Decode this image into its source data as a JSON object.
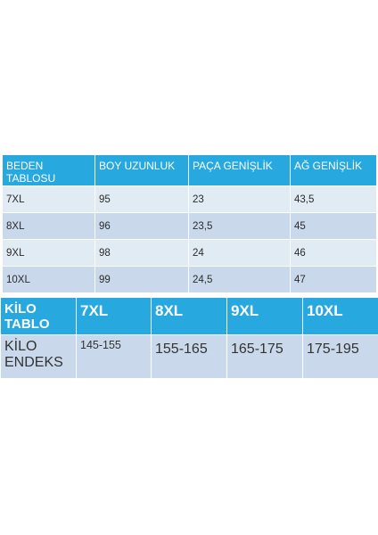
{
  "size_table": {
    "headers": [
      "BEDEN\nTABLOSU",
      "BOY UZUNLUK",
      "PAÇA GENİŞLİK",
      "AĞ GENİŞLİK"
    ],
    "rows": [
      [
        "7XL",
        "95",
        "23",
        "43,5"
      ],
      [
        "8XL",
        "96",
        "23,5",
        "45"
      ],
      [
        "9XL",
        "98",
        "24",
        "46"
      ],
      [
        "10XL",
        "99",
        "24,5",
        "47"
      ]
    ]
  },
  "kilo_table": {
    "title": "KİLO\nTABLO",
    "sizes": [
      "7XL",
      "8XL",
      "9XL",
      "10XL"
    ],
    "row_label": "KİLO\nENDEKS",
    "values": [
      "145-155",
      "155-165",
      "165-175",
      "175-195"
    ]
  },
  "colors": {
    "header_blue": "#27a8df",
    "row_light": "#e1ebf4",
    "row_dark": "#c9d9eb"
  }
}
